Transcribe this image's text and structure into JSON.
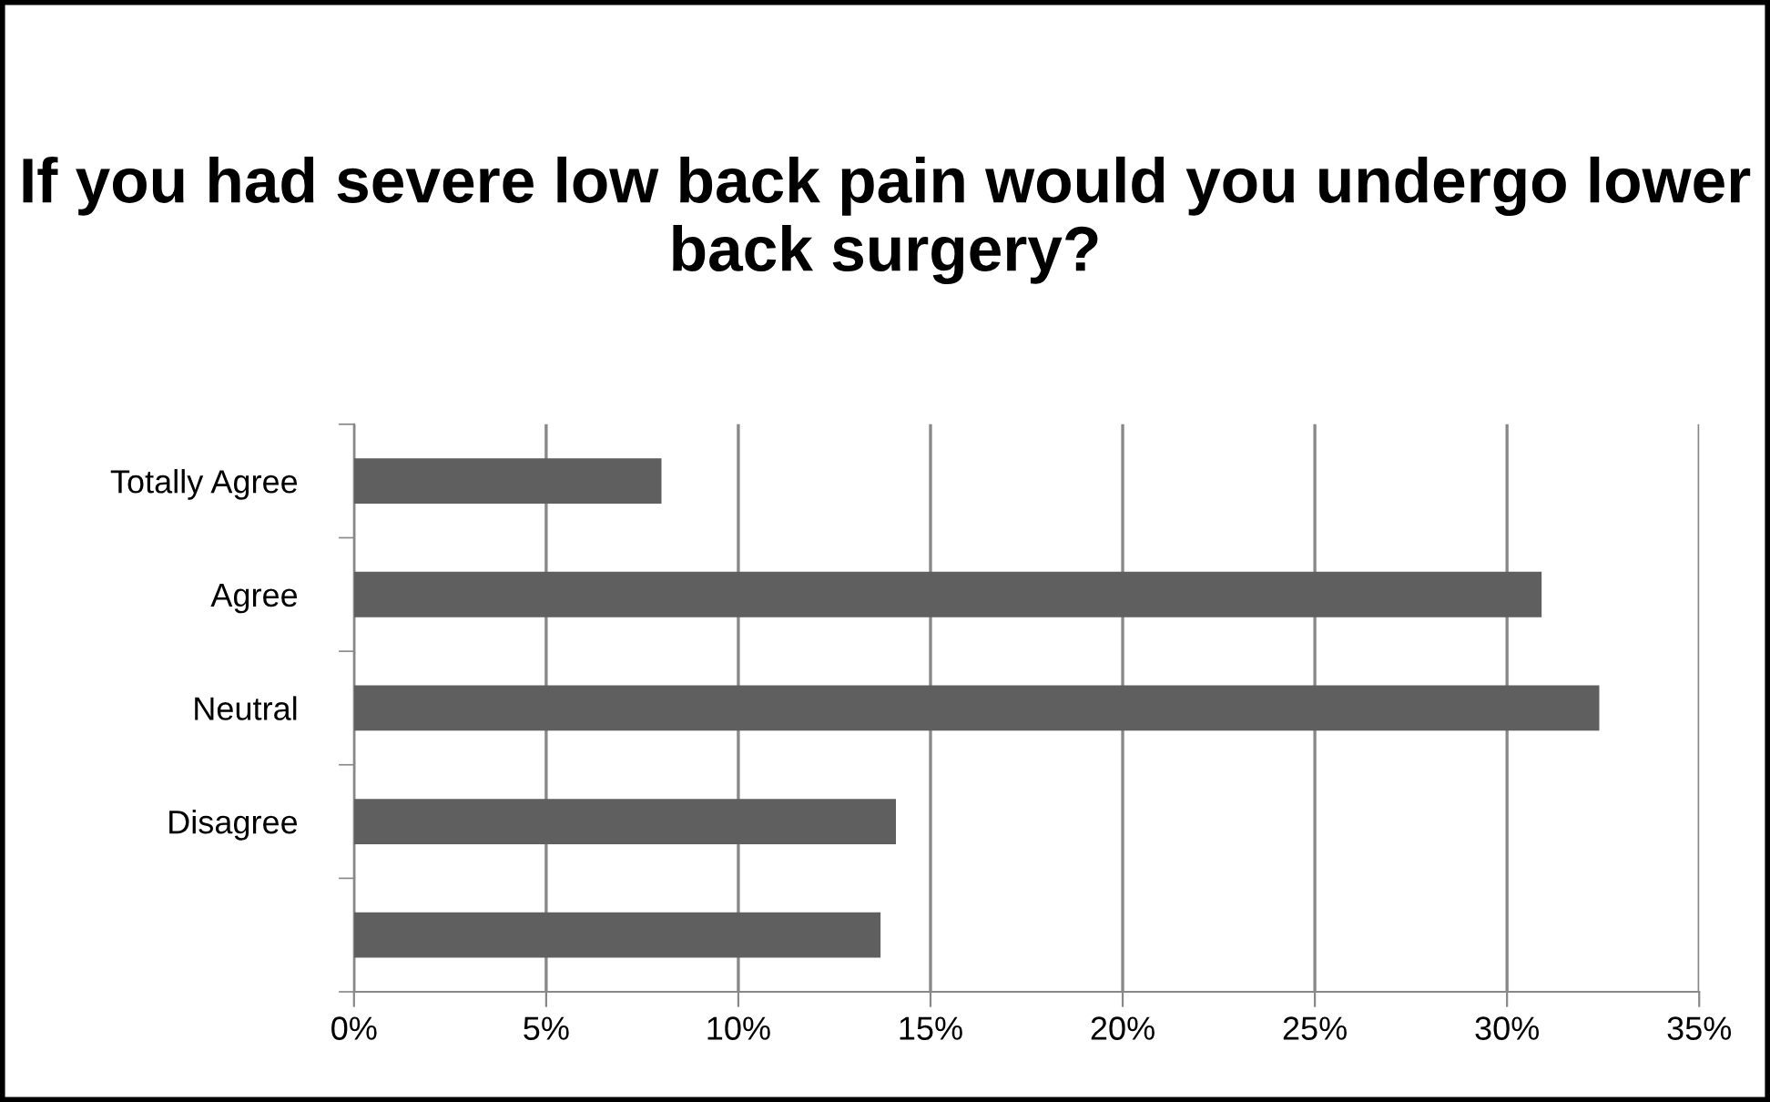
{
  "chart_data": {
    "type": "bar",
    "orientation": "horizontal",
    "title": "If you had severe low back pain would you undergo lower back surgery?",
    "categories": [
      "Totally Agree",
      "Agree",
      "Neutral",
      "Disagree",
      null
    ],
    "values": [
      8.0,
      30.9,
      32.4,
      14.1,
      13.7
    ],
    "color": "#5f5f5f",
    "xlim": [
      0,
      35
    ],
    "xticks": [
      {
        "value": 0,
        "label": "0%"
      },
      {
        "value": 5,
        "label": "5%"
      },
      {
        "value": 10,
        "label": "10%"
      },
      {
        "value": 15,
        "label": "15%"
      },
      {
        "value": 20,
        "label": "20%"
      },
      {
        "value": 25,
        "label": "25%"
      },
      {
        "value": 30,
        "label": "30%"
      },
      {
        "value": 35,
        "label": "35%"
      }
    ],
    "grid": "x",
    "legend": false
  }
}
